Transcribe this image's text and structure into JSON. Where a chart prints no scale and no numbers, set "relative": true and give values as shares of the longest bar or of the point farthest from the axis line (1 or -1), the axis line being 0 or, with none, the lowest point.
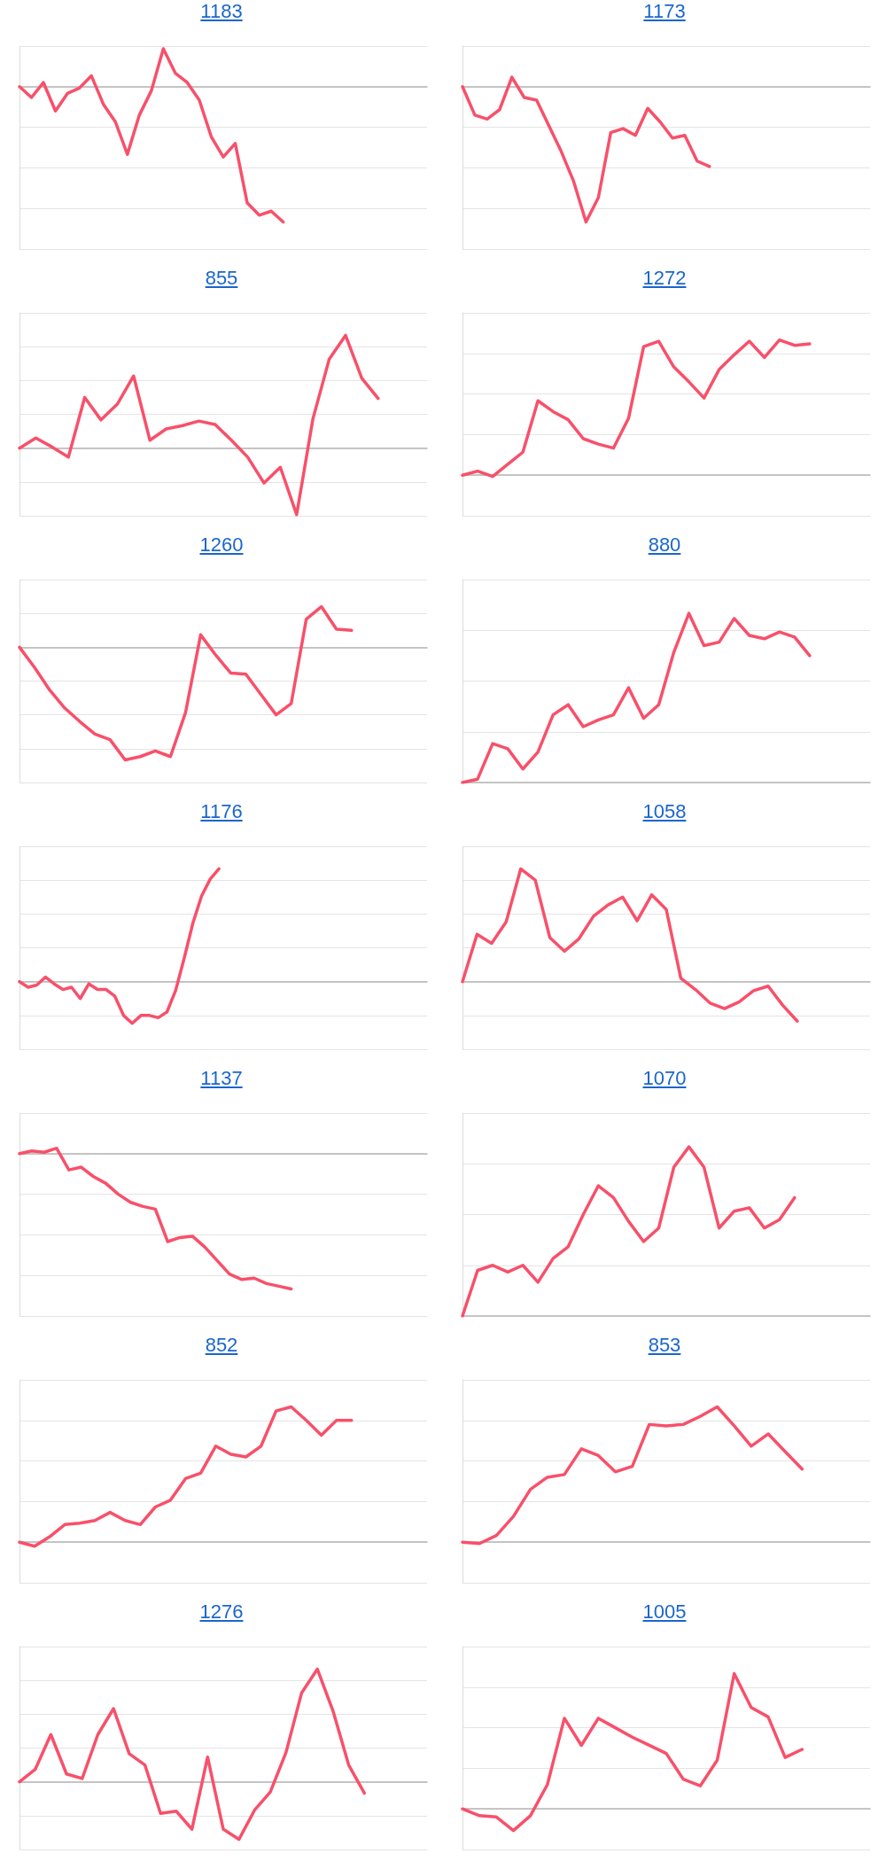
{
  "chart_data": [
    {
      "type": "line",
      "title": "1183",
      "relative": true,
      "grid": "y",
      "marker": "none",
      "color": "#f8506a",
      "categories": [
        null,
        null,
        null,
        null,
        null,
        null,
        null,
        null,
        null,
        null,
        null,
        null,
        null,
        null,
        null,
        null,
        null,
        null,
        null,
        null,
        null,
        null,
        null,
        null,
        null,
        null,
        null,
        null,
        null,
        null,
        null,
        null,
        null,
        null,
        null
      ],
      "values": [
        0,
        -0.08,
        0.03,
        -0.18,
        -0.05,
        -0.01,
        0.08,
        -0.13,
        -0.26,
        -0.5,
        -0.21,
        -0.03,
        0.28,
        0.1,
        0.03,
        -0.1,
        -0.37,
        -0.52,
        -0.42,
        -0.86,
        -0.95,
        -0.92,
        -1,
        null,
        null,
        null,
        null,
        null,
        null,
        null,
        null,
        null,
        null,
        null,
        null
      ]
    },
    {
      "type": "line",
      "title": "1173",
      "relative": true,
      "grid": "y",
      "marker": "none",
      "color": "#f8506a",
      "categories": [
        null,
        null,
        null,
        null,
        null,
        null,
        null,
        null,
        null,
        null,
        null,
        null,
        null,
        null,
        null,
        null,
        null,
        null,
        null,
        null,
        null,
        null,
        null,
        null,
        null,
        null,
        null,
        null,
        null,
        null,
        null,
        null,
        null,
        null
      ],
      "values": [
        0,
        -0.21,
        -0.24,
        -0.17,
        0.07,
        -0.08,
        -0.1,
        -0.29,
        -0.48,
        -0.7,
        -1,
        -0.82,
        -0.34,
        -0.31,
        -0.36,
        -0.16,
        -0.26,
        -0.38,
        -0.36,
        -0.55,
        -0.59,
        null,
        null,
        null,
        null,
        null,
        null,
        null,
        null,
        null,
        null,
        null,
        null,
        null
      ]
    },
    {
      "type": "line",
      "title": "855",
      "relative": true,
      "grid": "y",
      "marker": "none",
      "color": "#f8506a",
      "categories": [
        null,
        null,
        null,
        null,
        null,
        null,
        null,
        null,
        null,
        null,
        null,
        null,
        null,
        null,
        null,
        null,
        null,
        null,
        null,
        null,
        null,
        null,
        null,
        null,
        null,
        null
      ],
      "values": [
        0,
        0.09,
        0.01,
        -0.08,
        0.45,
        0.25,
        0.39,
        0.64,
        0.07,
        0.17,
        0.2,
        0.24,
        0.21,
        0.07,
        -0.08,
        -0.31,
        -0.17,
        -0.59,
        0.26,
        0.79,
        1,
        0.62,
        0.44,
        null,
        null,
        null
      ]
    },
    {
      "type": "line",
      "title": "1272",
      "relative": true,
      "grid": "y",
      "marker": "none",
      "color": "#f8506a",
      "categories": [
        null,
        null,
        null,
        null,
        null,
        null,
        null,
        null,
        null,
        null,
        null,
        null,
        null,
        null,
        null,
        null,
        null,
        null,
        null,
        null,
        null,
        null,
        null,
        null,
        null,
        null,
        null,
        null
      ],
      "values": [
        0,
        0.03,
        -0.01,
        0.08,
        0.17,
        0.55,
        0.47,
        0.41,
        0.27,
        0.23,
        0.2,
        0.42,
        0.95,
        0.99,
        0.8,
        0.69,
        0.57,
        0.78,
        0.89,
        0.99,
        0.87,
        1,
        0.96,
        0.97,
        null,
        null,
        null,
        null
      ]
    },
    {
      "type": "line",
      "title": "1260",
      "relative": true,
      "grid": "y",
      "marker": "none",
      "color": "#f8506a",
      "categories": [
        null,
        null,
        null,
        null,
        null,
        null,
        null,
        null,
        null,
        null,
        null,
        null,
        null,
        null,
        null,
        null,
        null,
        null,
        null,
        null,
        null,
        null,
        null,
        null,
        null,
        null,
        null,
        null
      ],
      "values": [
        0,
        -0.18,
        -0.38,
        -0.54,
        -0.66,
        -0.77,
        -0.82,
        -1,
        -0.97,
        -0.92,
        -0.97,
        -0.58,
        0.11,
        -0.07,
        -0.23,
        -0.24,
        -0.42,
        -0.6,
        -0.5,
        0.25,
        0.36,
        0.16,
        0.15,
        null,
        null,
        null,
        null,
        null
      ]
    },
    {
      "type": "line",
      "title": "880",
      "relative": true,
      "grid": "y",
      "marker": "none",
      "color": "#f8506a",
      "categories": [
        null,
        null,
        null,
        null,
        null,
        null,
        null,
        null,
        null,
        null,
        null,
        null,
        null,
        null,
        null,
        null,
        null,
        null,
        null,
        null,
        null,
        null,
        null,
        null,
        null,
        null,
        null,
        null
      ],
      "values": [
        0,
        0.02,
        0.23,
        0.2,
        0.08,
        0.18,
        0.4,
        0.46,
        0.33,
        0.37,
        0.4,
        0.56,
        0.38,
        0.46,
        0.77,
        1,
        0.81,
        0.83,
        0.97,
        0.87,
        0.85,
        0.89,
        0.86,
        0.75,
        null,
        null,
        null,
        null
      ]
    },
    {
      "type": "line",
      "title": "1176",
      "relative": true,
      "grid": "y",
      "marker": "none",
      "color": "#f8506a",
      "categories": [
        null,
        null,
        null,
        null,
        null,
        null,
        null,
        null,
        null,
        null,
        null,
        null,
        null,
        null,
        null,
        null,
        null,
        null,
        null,
        null,
        null,
        null,
        null,
        null,
        null,
        null,
        null,
        null,
        null,
        null,
        null,
        null,
        null,
        null,
        null,
        null,
        null,
        null,
        null,
        null,
        null,
        null,
        null,
        null,
        null,
        null,
        null,
        null
      ],
      "values": [
        0,
        -0.05,
        -0.03,
        0.04,
        -0.02,
        -0.07,
        -0.05,
        -0.15,
        -0.02,
        -0.07,
        -0.07,
        -0.13,
        -0.3,
        -0.37,
        -0.3,
        -0.3,
        -0.32,
        -0.27,
        -0.08,
        0.21,
        0.52,
        0.76,
        0.91,
        1,
        null,
        null,
        null,
        null,
        null,
        null,
        null,
        null,
        null,
        null,
        null,
        null,
        null,
        null,
        null,
        null,
        null,
        null,
        null,
        null,
        null,
        null,
        null,
        null
      ]
    },
    {
      "type": "line",
      "title": "1058",
      "relative": true,
      "grid": "y",
      "marker": "none",
      "color": "#f8506a",
      "categories": [
        null,
        null,
        null,
        null,
        null,
        null,
        null,
        null,
        null,
        null,
        null,
        null,
        null,
        null,
        null,
        null,
        null,
        null,
        null,
        null,
        null,
        null,
        null,
        null,
        null,
        null,
        null,
        null,
        null
      ],
      "values": [
        0,
        0.42,
        0.34,
        0.53,
        1,
        0.9,
        0.39,
        0.27,
        0.38,
        0.58,
        0.68,
        0.75,
        0.54,
        0.77,
        0.64,
        0.03,
        -0.07,
        -0.19,
        -0.24,
        -0.18,
        -0.08,
        -0.04,
        -0.21,
        -0.35,
        null,
        null,
        null,
        null,
        null
      ]
    },
    {
      "type": "line",
      "title": "1137",
      "relative": true,
      "grid": "y",
      "marker": "none",
      "color": "#f8506a",
      "categories": [
        null,
        null,
        null,
        null,
        null,
        null,
        null,
        null,
        null,
        null,
        null,
        null,
        null,
        null,
        null,
        null,
        null,
        null,
        null,
        null,
        null,
        null,
        null,
        null,
        null,
        null,
        null,
        null,
        null,
        null,
        null,
        null,
        null,
        null
      ],
      "values": [
        0,
        0.02,
        0.01,
        0.04,
        -0.12,
        -0.1,
        -0.17,
        -0.22,
        -0.3,
        -0.36,
        -0.39,
        -0.41,
        -0.65,
        -0.62,
        -0.61,
        -0.69,
        -0.79,
        -0.89,
        -0.93,
        -0.92,
        -0.96,
        -0.98,
        -1,
        null,
        null,
        null,
        null,
        null,
        null,
        null,
        null,
        null,
        null,
        null
      ]
    },
    {
      "type": "line",
      "title": "1070",
      "relative": true,
      "grid": "y",
      "marker": "none",
      "color": "#f8506a",
      "categories": [
        null,
        null,
        null,
        null,
        null,
        null,
        null,
        null,
        null,
        null,
        null,
        null,
        null,
        null,
        null,
        null,
        null,
        null,
        null,
        null,
        null,
        null,
        null,
        null,
        null,
        null,
        null,
        null
      ],
      "values": [
        0,
        0.27,
        0.3,
        0.26,
        0.3,
        0.2,
        0.34,
        0.41,
        0.6,
        0.77,
        0.7,
        0.56,
        0.44,
        0.52,
        0.88,
        1,
        0.88,
        0.52,
        0.62,
        0.64,
        0.52,
        0.57,
        0.7,
        null,
        null,
        null,
        null,
        null
      ]
    },
    {
      "type": "line",
      "title": "852",
      "relative": true,
      "grid": "y",
      "marker": "none",
      "color": "#f8506a",
      "categories": [
        null,
        null,
        null,
        null,
        null,
        null,
        null,
        null,
        null,
        null,
        null,
        null,
        null,
        null,
        null,
        null,
        null,
        null,
        null,
        null,
        null,
        null,
        null,
        null,
        null,
        null,
        null,
        null
      ],
      "values": [
        0,
        -0.03,
        0.04,
        0.13,
        0.14,
        0.16,
        0.22,
        0.16,
        0.13,
        0.26,
        0.31,
        0.47,
        0.51,
        0.71,
        0.65,
        0.63,
        0.71,
        0.97,
        1,
        0.9,
        0.79,
        0.9,
        0.9,
        null,
        null,
        null,
        null,
        null
      ]
    },
    {
      "type": "line",
      "title": "853",
      "relative": true,
      "grid": "y",
      "marker": "none",
      "color": "#f8506a",
      "categories": [
        null,
        null,
        null,
        null,
        null,
        null,
        null,
        null,
        null,
        null,
        null,
        null,
        null,
        null,
        null,
        null,
        null,
        null,
        null,
        null,
        null,
        null,
        null,
        null,
        null
      ],
      "values": [
        0,
        -0.01,
        0.05,
        0.19,
        0.39,
        0.48,
        0.5,
        0.69,
        0.64,
        0.52,
        0.56,
        0.87,
        0.86,
        0.87,
        0.93,
        1,
        0.86,
        0.71,
        0.8,
        0.67,
        0.54,
        null,
        null,
        null,
        null
      ]
    },
    {
      "type": "line",
      "title": "1276",
      "relative": true,
      "grid": "y",
      "marker": "none",
      "color": "#f8506a",
      "categories": [
        null,
        null,
        null,
        null,
        null,
        null,
        null,
        null,
        null,
        null,
        null,
        null,
        null,
        null,
        null,
        null,
        null,
        null,
        null,
        null,
        null,
        null,
        null,
        null,
        null,
        null,
        null
      ],
      "values": [
        0,
        0.11,
        0.42,
        0.07,
        0.03,
        0.42,
        0.65,
        0.25,
        0.15,
        -0.28,
        -0.26,
        -0.42,
        0.22,
        -0.42,
        -0.51,
        -0.25,
        -0.09,
        0.26,
        0.79,
        1,
        0.63,
        0.15,
        -0.1,
        null,
        null,
        null,
        null
      ]
    },
    {
      "type": "line",
      "title": "1005",
      "relative": true,
      "grid": "y",
      "marker": "none",
      "color": "#f8506a",
      "categories": [
        null,
        null,
        null,
        null,
        null,
        null,
        null,
        null,
        null,
        null,
        null,
        null,
        null,
        null,
        null,
        null,
        null,
        null,
        null,
        null,
        null,
        null,
        null,
        null,
        null
      ],
      "values": [
        0,
        -0.05,
        -0.06,
        -0.16,
        -0.05,
        0.18,
        0.67,
        0.47,
        0.67,
        0.6,
        0.53,
        0.47,
        0.41,
        0.22,
        0.17,
        0.36,
        1,
        0.75,
        0.68,
        0.38,
        0.44,
        null,
        null,
        null,
        null
      ]
    }
  ]
}
